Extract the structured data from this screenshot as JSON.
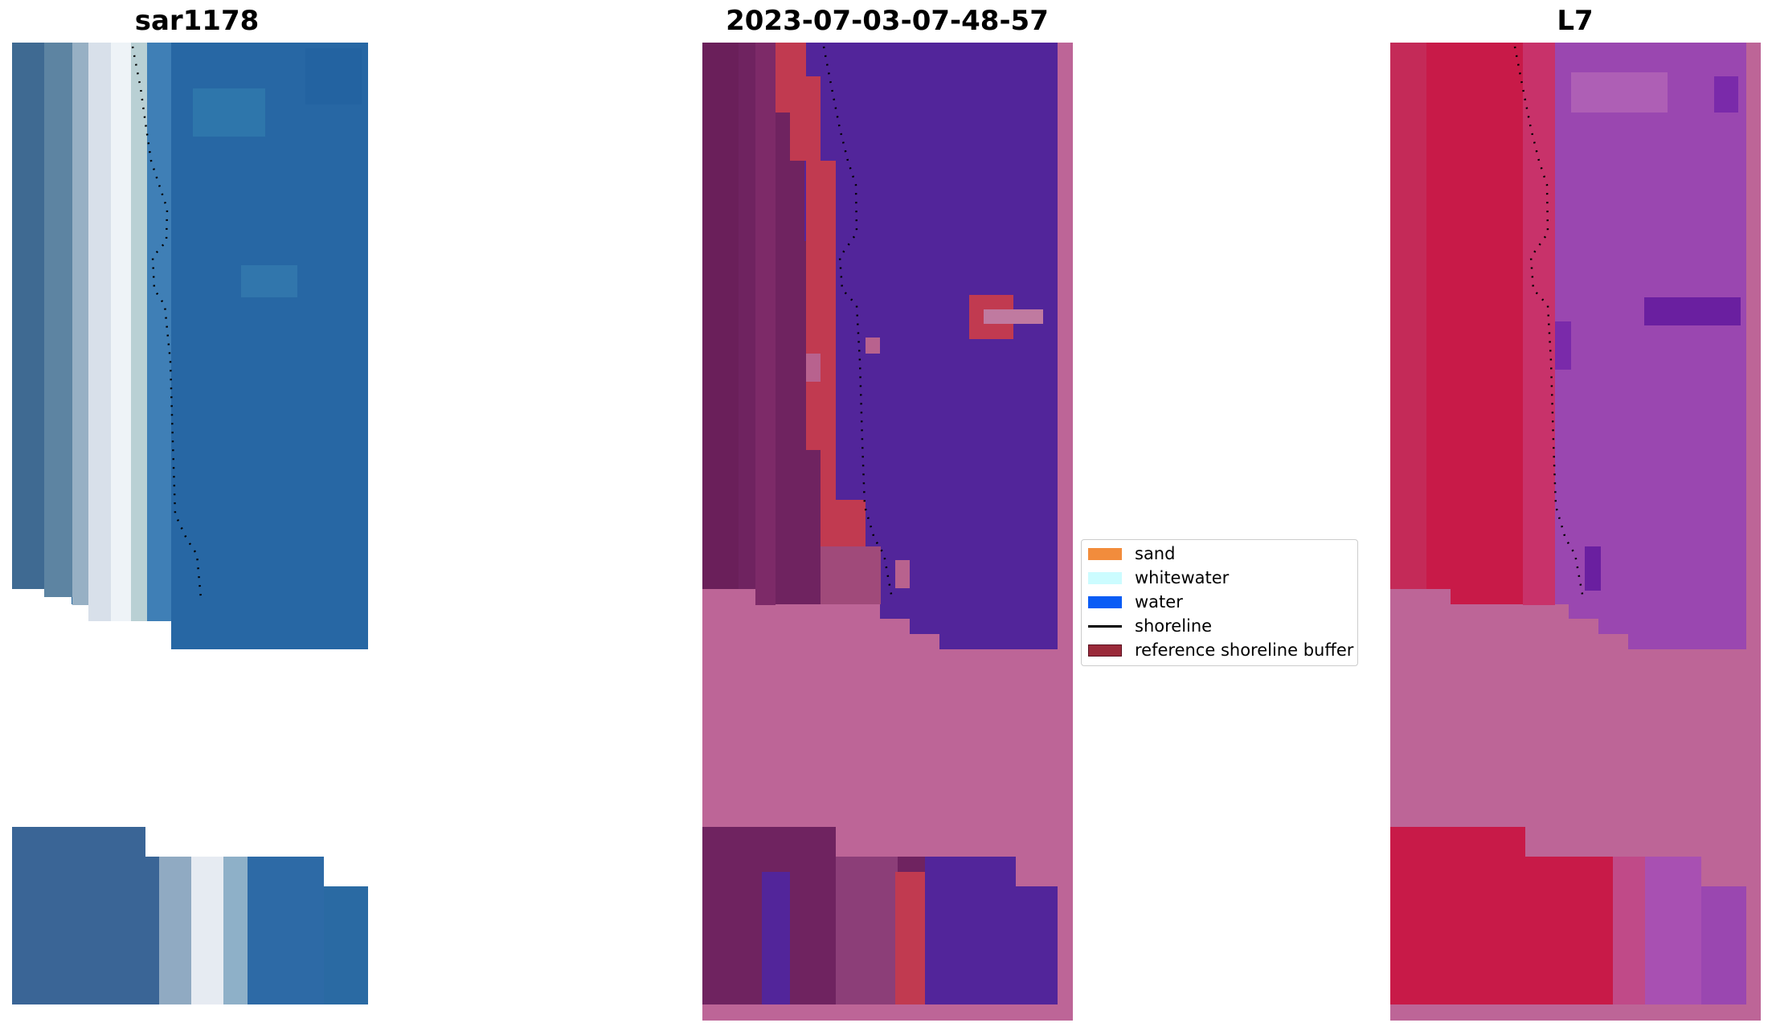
{
  "panels": [
    {
      "title": "sar1178",
      "view": "true-color"
    },
    {
      "title": "2023-07-03-07-48-57",
      "view": "classified"
    },
    {
      "title": "L7",
      "view": "index"
    }
  ],
  "legend": {
    "items": [
      {
        "label": "sand",
        "type": "patch",
        "color": "#f28c3c"
      },
      {
        "label": "whitewater",
        "type": "patch",
        "color": "#ccfcff"
      },
      {
        "label": "water",
        "type": "patch",
        "color": "#0a5cf5"
      },
      {
        "label": "shoreline",
        "type": "line",
        "color": "#000000"
      },
      {
        "label": "reference shoreline buffer",
        "type": "patch",
        "color": "#9a2a3a"
      }
    ]
  },
  "colors": {
    "nodata_pink": "#bd6597",
    "water_purple": "#52259a",
    "buffer_red": "#c13a50",
    "land_dark": "#6f2360",
    "index_red": "#c81a48",
    "index_purple": "#9a47b0",
    "truecolor_blue": "#2a6aa0"
  }
}
